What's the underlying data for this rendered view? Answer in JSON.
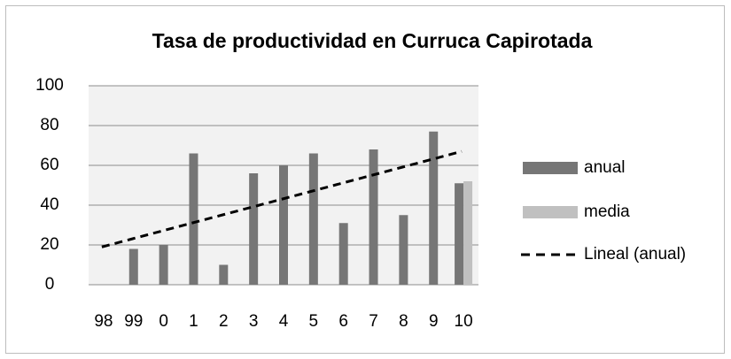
{
  "chart_data": {
    "type": "bar",
    "title": "Tasa de productividad en Curruca Capirotada",
    "categories": [
      "98",
      "99",
      "0",
      "1",
      "2",
      "3",
      "4",
      "5",
      "6",
      "7",
      "8",
      "9",
      "10"
    ],
    "series": [
      {
        "name": "anual",
        "color": "#767676",
        "values": [
          null,
          18,
          20,
          66,
          10,
          56,
          60,
          66,
          31,
          68,
          35,
          77,
          51
        ]
      },
      {
        "name": "media",
        "color": "#c0c0c0",
        "values": [
          null,
          null,
          null,
          null,
          null,
          null,
          null,
          null,
          null,
          null,
          null,
          null,
          52
        ]
      },
      {
        "name": "Lineal (anual)",
        "type": "line",
        "dash": true,
        "color": "#000000",
        "values": [
          19,
          23,
          27,
          31,
          35,
          39,
          43,
          47,
          51,
          55,
          59,
          63,
          67
        ]
      }
    ],
    "ylim": [
      0,
      100
    ],
    "yticks": [
      0,
      20,
      40,
      60,
      80,
      100
    ],
    "grid": true,
    "legend": "right"
  }
}
